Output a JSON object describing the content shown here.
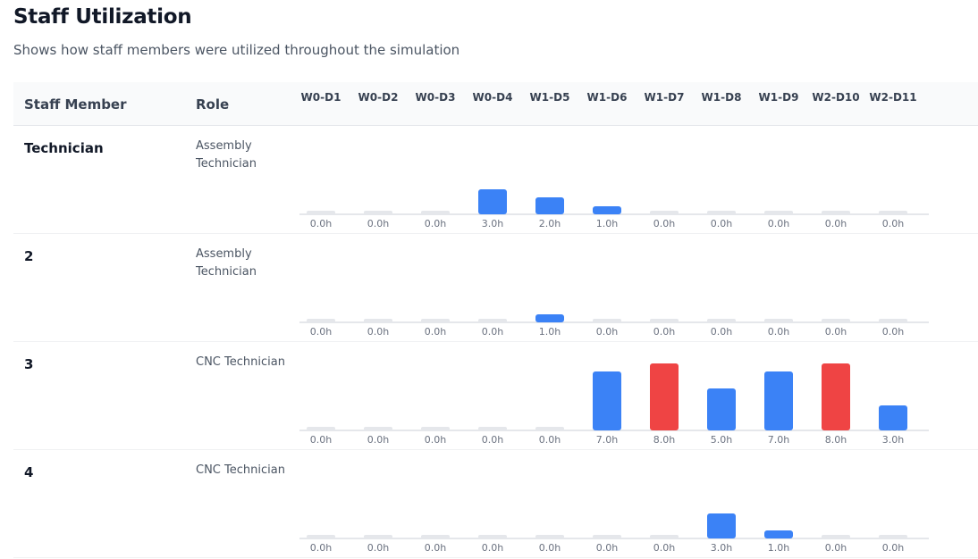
{
  "page": {
    "title": "Staff Utilization",
    "subtitle": "Shows how staff members were utilized throughout the simulation"
  },
  "table": {
    "headers": {
      "staff": "Staff Member",
      "role": "Role"
    }
  },
  "colors": {
    "normal": "#3b82f6",
    "max": "#ef4444",
    "zero": "#e5e7eb"
  },
  "chart_data": {
    "type": "bar",
    "title": "Staff Utilization",
    "xlabel": "",
    "ylabel": "Hours",
    "ylim": [
      0,
      8
    ],
    "unit": "h",
    "categories": [
      "W0-D1",
      "W0-D2",
      "W0-D3",
      "W0-D4",
      "W1-D5",
      "W1-D6",
      "W1-D7",
      "W1-D8",
      "W1-D9",
      "W2-D10",
      "W2-D11"
    ],
    "series": [
      {
        "name": "Technician",
        "role": "Assembly Technician",
        "values": [
          0,
          0,
          0,
          3,
          2,
          1,
          0,
          0,
          0,
          0,
          0
        ]
      },
      {
        "name": "2",
        "role": "Assembly Technician",
        "values": [
          0,
          0,
          0,
          0,
          1,
          0,
          0,
          0,
          0,
          0,
          0
        ]
      },
      {
        "name": "3",
        "role": "CNC Technician",
        "values": [
          0,
          0,
          0,
          0,
          0,
          7,
          8,
          5,
          7,
          8,
          3
        ]
      },
      {
        "name": "4",
        "role": "CNC Technician",
        "values": [
          0,
          0,
          0,
          0,
          0,
          0,
          0,
          3,
          1,
          0,
          0
        ]
      }
    ]
  }
}
